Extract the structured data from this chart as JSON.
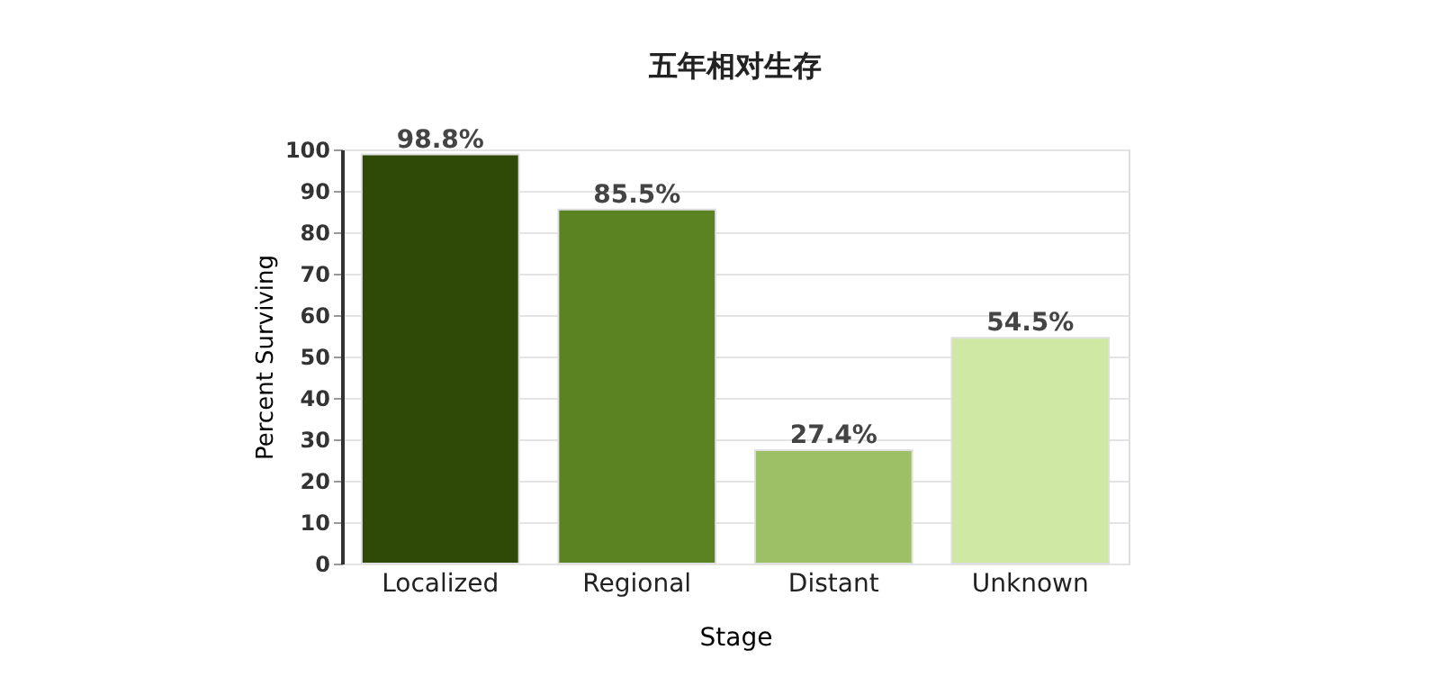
{
  "chart_data": {
    "type": "bar",
    "title": "五年相对生存",
    "xlabel": "Stage",
    "ylabel": "Percent Surviving",
    "categories": [
      "Localized",
      "Regional",
      "Distant",
      "Unknown"
    ],
    "values": [
      98.8,
      85.5,
      27.4,
      54.5
    ],
    "colors": [
      "#2e4a06",
      "#5b8322",
      "#9dc067",
      "#cfe8a4"
    ],
    "value_labels": [
      "98.8%",
      "85.5%",
      "27.4%",
      "54.5%"
    ],
    "ylim": [
      0,
      100
    ],
    "yticks": [
      0,
      10,
      20,
      30,
      40,
      50,
      60,
      70,
      80,
      90,
      100
    ],
    "grid": "y"
  }
}
